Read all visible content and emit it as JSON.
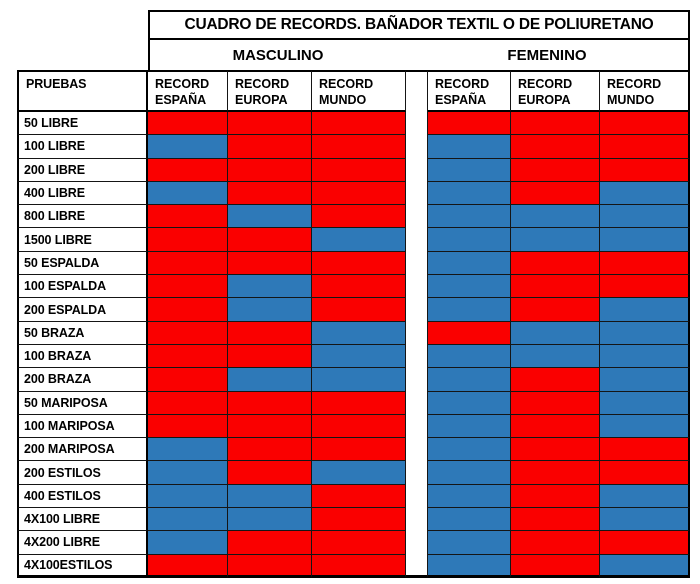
{
  "chart_data": {
    "type": "heatmap",
    "title": "CUADRO DE RECORDS. BAÑADOR TEXTIL O DE POLIURETANO",
    "col_groups": [
      "MASCULINO",
      "FEMENINO"
    ],
    "row_header": "PRUEBAS",
    "col_header_word1": "RECORD",
    "columns": [
      "ESPAÑA",
      "EUROPA",
      "MUNDO",
      "ESPAÑA",
      "EUROPA",
      "MUNDO"
    ],
    "rows": [
      "50 LIBRE",
      "100 LIBRE",
      "200 LIBRE",
      "400 LIBRE",
      "800 LIBRE",
      "1500 LIBRE",
      "50 ESPALDA",
      "100 ESPALDA",
      "200 ESPALDA",
      "50 BRAZA",
      "100 BRAZA",
      "200 BRAZA",
      "50 MARIPOSA",
      "100 MARIPOSA",
      "200 MARIPOSA",
      "200 ESTILOS",
      "400 ESTILOS",
      "4X100 LIBRE",
      "4X200 LIBRE",
      "4X100ESTILOS"
    ],
    "cell_colors": {
      "red": "#FA0000",
      "blue": "#2E79B8"
    },
    "legend_position": "none",
    "values": [
      [
        "red",
        "red",
        "red",
        "red",
        "red",
        "red"
      ],
      [
        "blue",
        "red",
        "red",
        "blue",
        "red",
        "red"
      ],
      [
        "red",
        "red",
        "red",
        "blue",
        "red",
        "red"
      ],
      [
        "blue",
        "red",
        "red",
        "blue",
        "red",
        "blue"
      ],
      [
        "red",
        "blue",
        "red",
        "blue",
        "blue",
        "blue"
      ],
      [
        "red",
        "red",
        "blue",
        "blue",
        "blue",
        "blue"
      ],
      [
        "red",
        "red",
        "red",
        "blue",
        "red",
        "red"
      ],
      [
        "red",
        "blue",
        "red",
        "blue",
        "red",
        "red"
      ],
      [
        "red",
        "blue",
        "red",
        "blue",
        "red",
        "blue"
      ],
      [
        "red",
        "red",
        "blue",
        "red",
        "blue",
        "blue"
      ],
      [
        "red",
        "red",
        "blue",
        "blue",
        "blue",
        "blue"
      ],
      [
        "red",
        "blue",
        "blue",
        "blue",
        "red",
        "blue"
      ],
      [
        "red",
        "red",
        "red",
        "blue",
        "red",
        "blue"
      ],
      [
        "red",
        "red",
        "red",
        "blue",
        "red",
        "blue"
      ],
      [
        "blue",
        "red",
        "red",
        "blue",
        "red",
        "red"
      ],
      [
        "blue",
        "red",
        "blue",
        "blue",
        "red",
        "red"
      ],
      [
        "blue",
        "blue",
        "red",
        "blue",
        "red",
        "blue"
      ],
      [
        "blue",
        "blue",
        "red",
        "blue",
        "red",
        "blue"
      ],
      [
        "blue",
        "red",
        "red",
        "blue",
        "red",
        "red"
      ],
      [
        "red",
        "red",
        "red",
        "blue",
        "red",
        "blue"
      ]
    ]
  }
}
